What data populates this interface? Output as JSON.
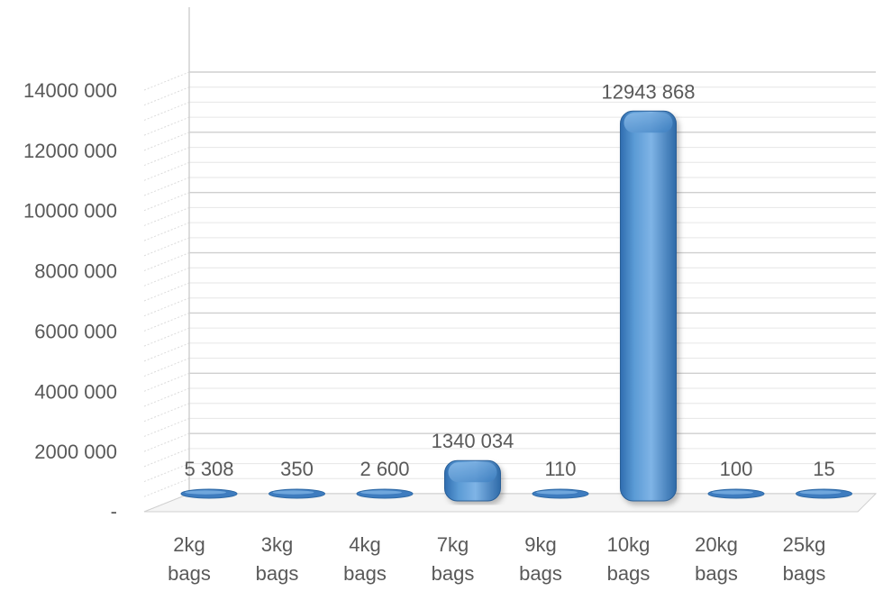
{
  "chart_data": {
    "type": "bar",
    "title": "",
    "xlabel": "",
    "ylabel": "",
    "categories": [
      [
        "2kg",
        "bags"
      ],
      [
        "3kg",
        "bags"
      ],
      [
        "4kg",
        "bags"
      ],
      [
        "7kg",
        "bags"
      ],
      [
        "9kg",
        "bags"
      ],
      [
        "10kg",
        "bags"
      ],
      [
        "20kg",
        "bags"
      ],
      [
        "25kg",
        "bags"
      ]
    ],
    "values": [
      5308,
      350,
      2600,
      1340034,
      110,
      12943868,
      100,
      15
    ],
    "data_labels": [
      "5 308",
      "350",
      "2 600",
      "1340 034",
      "110",
      "12943 868",
      "100",
      "15"
    ],
    "ylim": [
      0,
      14000000
    ],
    "yticks": [
      0,
      2000000,
      4000000,
      6000000,
      8000000,
      10000000,
      12000000,
      14000000
    ],
    "ytick_labels": [
      "-",
      "2000 000",
      "4000 000",
      "6000 000",
      "8000 000",
      "10000 000",
      "12000 000",
      "14000 000"
    ],
    "grid": true,
    "legend": "none",
    "style": "3d-rounded-columns",
    "bar_color": "#5b9bd5",
    "grid_color": "#d9d9d9",
    "text_color": "#595959"
  }
}
